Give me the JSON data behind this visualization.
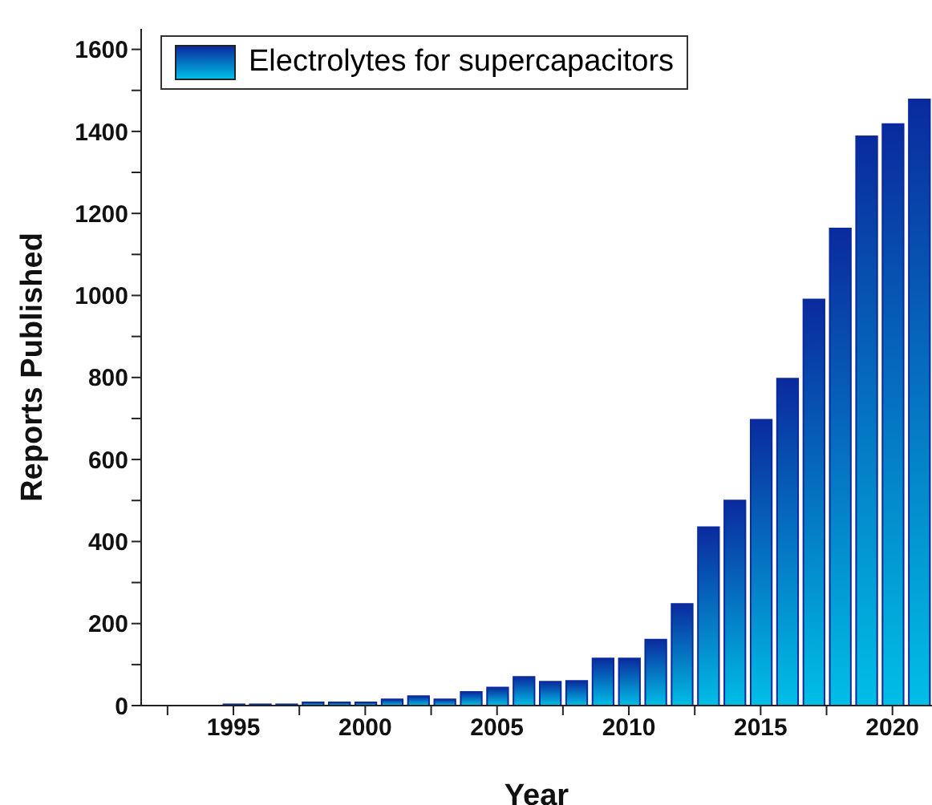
{
  "chart_data": {
    "type": "bar",
    "xlabel": "Year",
    "ylabel": "Reports Published",
    "x": [
      1995,
      1996,
      1997,
      1998,
      1999,
      2000,
      2001,
      2002,
      2003,
      2004,
      2005,
      2006,
      2007,
      2008,
      2009,
      2010,
      2011,
      2012,
      2013,
      2014,
      2015,
      2016,
      2017,
      2018,
      2019,
      2020,
      2021
    ],
    "series": [
      {
        "name": "Electrolytes for supercapacitors",
        "color": "#0a2a9e",
        "values": [
          3,
          3,
          3,
          8,
          8,
          8,
          15,
          23,
          15,
          33,
          44,
          70,
          58,
          60,
          115,
          115,
          161,
          248,
          435,
          500,
          697,
          797,
          990,
          1163,
          1388,
          1418,
          1478
        ]
      }
    ],
    "xlim": [
      1991.5,
      2021.5
    ],
    "xticks": [
      {
        "value": 1992.5,
        "label": null
      },
      1995,
      {
        "value": 1997.5,
        "label": null
      },
      2000,
      {
        "value": 2002.5,
        "label": null
      },
      2005,
      {
        "value": 2007.5,
        "label": null
      },
      2010,
      {
        "value": 2012.5,
        "label": null
      },
      2015,
      {
        "value": 2017.5,
        "label": null
      },
      2020
    ],
    "ylim": [
      0,
      1650
    ],
    "yticks": [
      0,
      {
        "value": 100,
        "label": null
      },
      200,
      {
        "value": 300,
        "label": null
      },
      400,
      {
        "value": 500,
        "label": null
      },
      600,
      {
        "value": 700,
        "label": null
      },
      800,
      {
        "value": 900,
        "label": null
      },
      1000,
      {
        "value": 1100,
        "label": null
      },
      1200,
      {
        "value": 1300,
        "label": null
      },
      1400,
      {
        "value": 1500,
        "label": null
      },
      1600
    ],
    "legend": "top left",
    "grid": false
  }
}
